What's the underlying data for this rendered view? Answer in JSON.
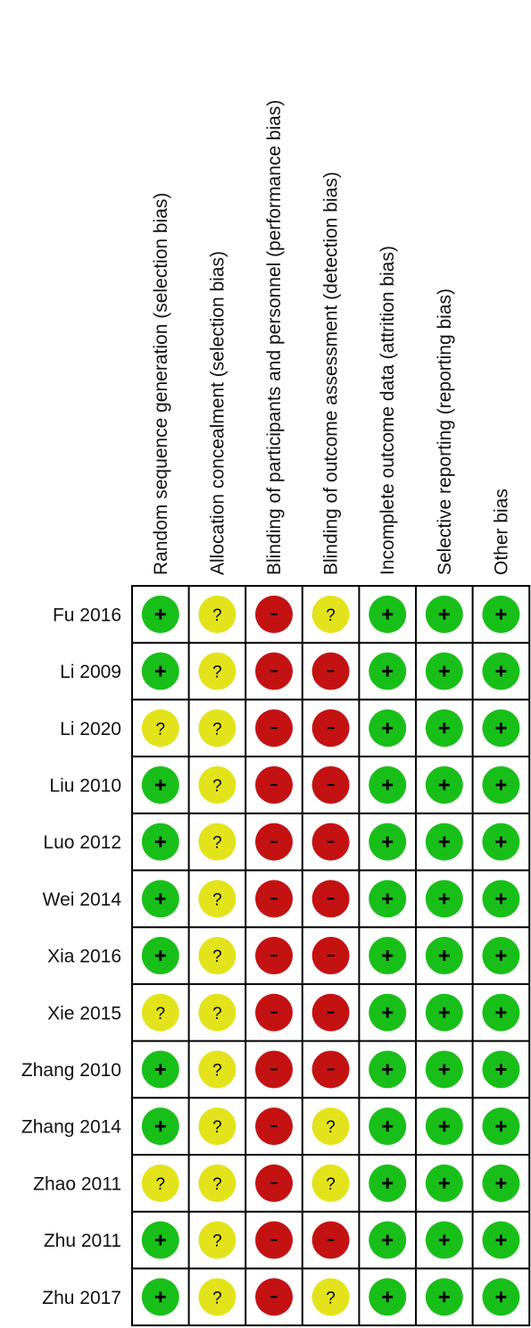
{
  "chart_data": {
    "type": "table",
    "title": "",
    "domains": [
      "Random sequence generation (selection bias)",
      "Allocation concealment (selection bias)",
      "Blinding of participants and personnel (performance bias)",
      "Blinding of outcome assessment (detection bias)",
      "Incomplete outcome data (attrition bias)",
      "Selective reporting (reporting bias)",
      "Other bias"
    ],
    "studies": [
      "Fu 2016",
      "Li 2009",
      "Li 2020",
      "Liu 2010",
      "Luo 2012",
      "Wei 2014",
      "Xia 2016",
      "Xie 2015",
      "Zhang 2010",
      "Zhang 2014",
      "Zhao 2011",
      "Zhu 2011",
      "Zhu 2017"
    ],
    "judgements": [
      [
        "+",
        "?",
        "-",
        "?",
        "+",
        "+",
        "+"
      ],
      [
        "+",
        "?",
        "-",
        "-",
        "+",
        "+",
        "+"
      ],
      [
        "?",
        "?",
        "-",
        "-",
        "+",
        "+",
        "+"
      ],
      [
        "+",
        "?",
        "-",
        "-",
        "+",
        "+",
        "+"
      ],
      [
        "+",
        "?",
        "-",
        "-",
        "+",
        "+",
        "+"
      ],
      [
        "+",
        "?",
        "-",
        "-",
        "+",
        "+",
        "+"
      ],
      [
        "+",
        "?",
        "-",
        "-",
        "+",
        "+",
        "+"
      ],
      [
        "?",
        "?",
        "-",
        "-",
        "+",
        "+",
        "+"
      ],
      [
        "+",
        "?",
        "-",
        "-",
        "+",
        "+",
        "+"
      ],
      [
        "+",
        "?",
        "-",
        "?",
        "+",
        "+",
        "+"
      ],
      [
        "?",
        "?",
        "-",
        "?",
        "+",
        "+",
        "+"
      ],
      [
        "+",
        "?",
        "-",
        "-",
        "+",
        "+",
        "+"
      ],
      [
        "+",
        "?",
        "-",
        "?",
        "+",
        "+",
        "+"
      ]
    ],
    "colors": {
      "low_risk": "#19bf19",
      "unclear_risk": "#e3e31c",
      "high_risk": "#c41212",
      "grid": "#000000"
    }
  }
}
